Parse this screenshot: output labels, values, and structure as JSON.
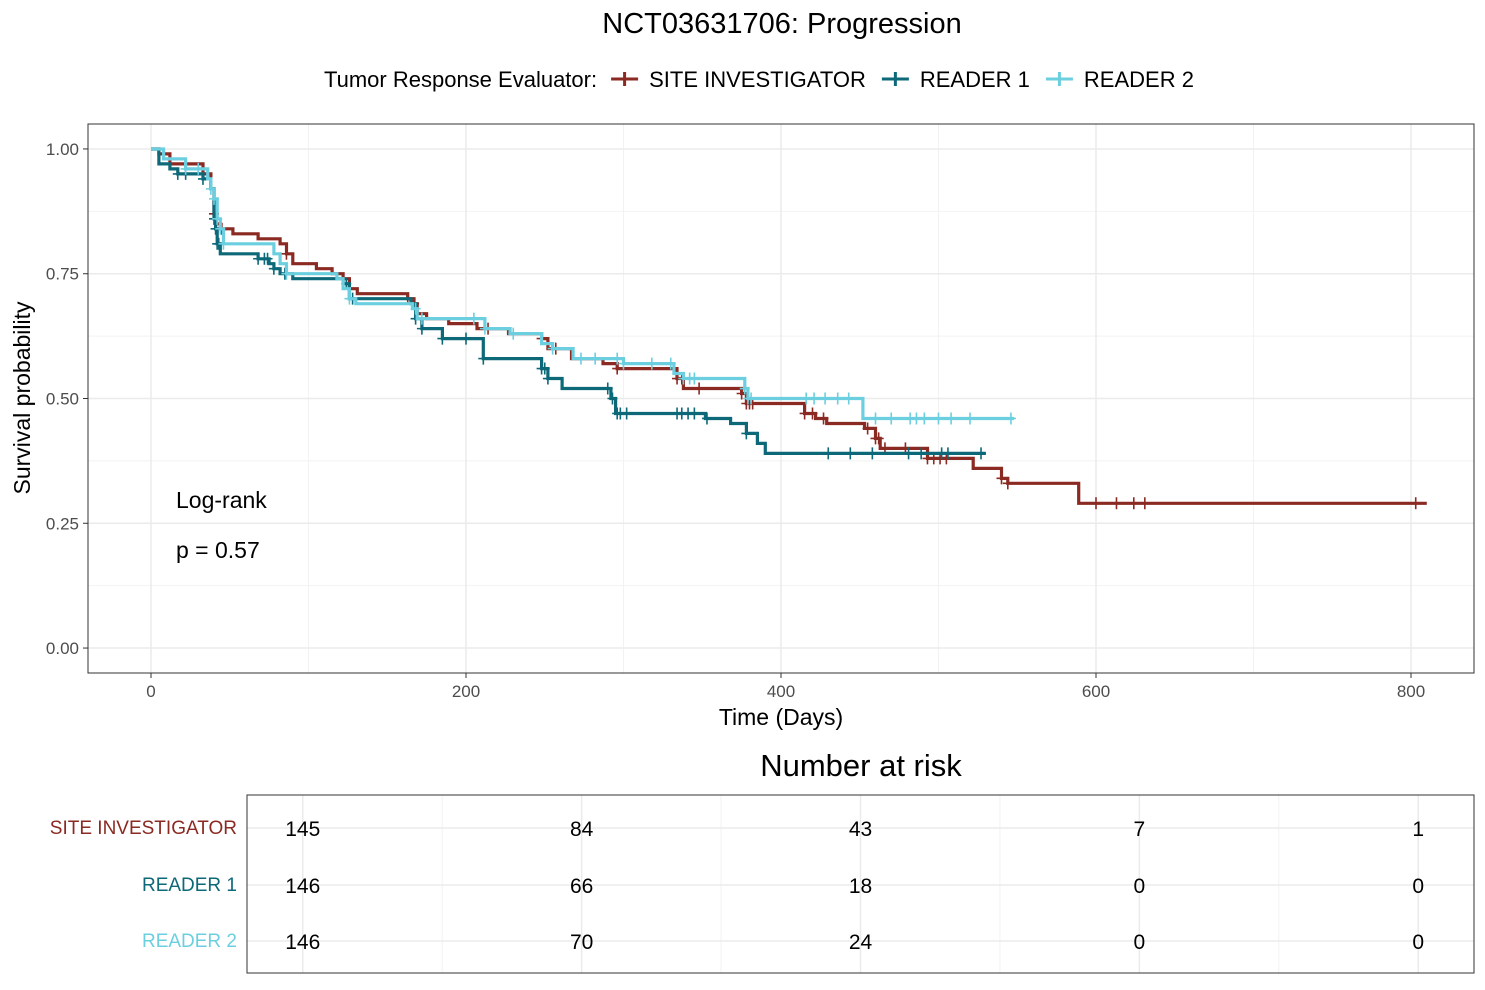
{
  "chart_data": {
    "type": "line",
    "subtype": "kaplan-meier",
    "title": "NCT03631706: Progression",
    "legend": {
      "title": "Tumor Response Evaluator:",
      "position": "top"
    },
    "xlabel": "Time (Days)",
    "ylabel": "Survival probability",
    "xlim": [
      -40,
      840
    ],
    "ylim": [
      -0.05,
      1.05
    ],
    "xticks": [
      0,
      200,
      400,
      600,
      800
    ],
    "xtick_labels": [
      "0",
      "200",
      "400",
      "600",
      "800"
    ],
    "yticks": [
      0,
      0.25,
      0.5,
      0.75,
      1
    ],
    "ytick_labels": [
      "0.00",
      "0.25",
      "0.50",
      "0.75",
      "1.00"
    ],
    "grid": true,
    "annotations": [
      "Log-rank",
      "p = 0.57"
    ],
    "series": [
      {
        "name": "SITE INVESTIGATOR",
        "color": "#8b2a22",
        "steps": [
          [
            0,
            1
          ],
          [
            5,
            0.99
          ],
          [
            12,
            0.97
          ],
          [
            33,
            0.95
          ],
          [
            38,
            0.92
          ],
          [
            40,
            0.87
          ],
          [
            41,
            0.85
          ],
          [
            44,
            0.84
          ],
          [
            52,
            0.83
          ],
          [
            68,
            0.82
          ],
          [
            82,
            0.81
          ],
          [
            86,
            0.79
          ],
          [
            90,
            0.77
          ],
          [
            105,
            0.76
          ],
          [
            108,
            0.76
          ],
          [
            115,
            0.75
          ],
          [
            122,
            0.74
          ],
          [
            126,
            0.72
          ],
          [
            131,
            0.71
          ],
          [
            163,
            0.7
          ],
          [
            167,
            0.69
          ],
          [
            169,
            0.67
          ],
          [
            175,
            0.66
          ],
          [
            189,
            0.65
          ],
          [
            207,
            0.64
          ],
          [
            212,
            0.64
          ],
          [
            227,
            0.63
          ],
          [
            248,
            0.62
          ],
          [
            252,
            0.6
          ],
          [
            267,
            0.58
          ],
          [
            287,
            0.57
          ],
          [
            296,
            0.56
          ],
          [
            334,
            0.54
          ],
          [
            338,
            0.52
          ],
          [
            375,
            0.51
          ],
          [
            378,
            0.49
          ],
          [
            415,
            0.47
          ],
          [
            422,
            0.46
          ],
          [
            429,
            0.45
          ],
          [
            453,
            0.44
          ],
          [
            460,
            0.42
          ],
          [
            463,
            0.4
          ],
          [
            493,
            0.38
          ],
          [
            505,
            0.38
          ],
          [
            522,
            0.36
          ],
          [
            540,
            0.34
          ],
          [
            544,
            0.33
          ],
          [
            589,
            0.29
          ],
          [
            810,
            0.29
          ]
        ],
        "censor_times": [
          40,
          45,
          86,
          126,
          163,
          167,
          214,
          248,
          257,
          296,
          334,
          337,
          348,
          375,
          378,
          380,
          382,
          415,
          420,
          427,
          455,
          460,
          462,
          466,
          479,
          493,
          497,
          501,
          505,
          540,
          544,
          600,
          613,
          624,
          631,
          803
        ]
      },
      {
        "name": "READER 1",
        "color": "#0d6878",
        "steps": [
          [
            0,
            1
          ],
          [
            5,
            0.97
          ],
          [
            12,
            0.96
          ],
          [
            17,
            0.95
          ],
          [
            33,
            0.94
          ],
          [
            38,
            0.92
          ],
          [
            40,
            0.86
          ],
          [
            41,
            0.84
          ],
          [
            42,
            0.81
          ],
          [
            44,
            0.79
          ],
          [
            68,
            0.78
          ],
          [
            75,
            0.77
          ],
          [
            78,
            0.76
          ],
          [
            82,
            0.75
          ],
          [
            85,
            0.75
          ],
          [
            90,
            0.74
          ],
          [
            118,
            0.74
          ],
          [
            122,
            0.73
          ],
          [
            126,
            0.7
          ],
          [
            130,
            0.7
          ],
          [
            133,
            0.7
          ],
          [
            165,
            0.69
          ],
          [
            168,
            0.66
          ],
          [
            172,
            0.64
          ],
          [
            185,
            0.62
          ],
          [
            208,
            0.62
          ],
          [
            211,
            0.58
          ],
          [
            248,
            0.56
          ],
          [
            252,
            0.54
          ],
          [
            261,
            0.52
          ],
          [
            292,
            0.5
          ],
          [
            295,
            0.47
          ],
          [
            352,
            0.46
          ],
          [
            368,
            0.45
          ],
          [
            378,
            0.43
          ],
          [
            385,
            0.41
          ],
          [
            390,
            0.39
          ],
          [
            530,
            0.39
          ]
        ],
        "censor_times": [
          17,
          22,
          33,
          40,
          41,
          42,
          43,
          68,
          72,
          74,
          78,
          85,
          124,
          128,
          168,
          172,
          185,
          200,
          211,
          248,
          250,
          252,
          290,
          293,
          296,
          298,
          302,
          334,
          337,
          341,
          345,
          353,
          378,
          430,
          444,
          458,
          481,
          489,
          502,
          506,
          527
        ]
      },
      {
        "name": "READER 2",
        "color": "#6ccfe0",
        "steps": [
          [
            0,
            1
          ],
          [
            8,
            0.98
          ],
          [
            22,
            0.96
          ],
          [
            36,
            0.94
          ],
          [
            38,
            0.92
          ],
          [
            40,
            0.9
          ],
          [
            42,
            0.86
          ],
          [
            44,
            0.84
          ],
          [
            46,
            0.81
          ],
          [
            78,
            0.79
          ],
          [
            82,
            0.77
          ],
          [
            86,
            0.75
          ],
          [
            108,
            0.75
          ],
          [
            118,
            0.74
          ],
          [
            122,
            0.72
          ],
          [
            126,
            0.7
          ],
          [
            130,
            0.69
          ],
          [
            166,
            0.68
          ],
          [
            169,
            0.66
          ],
          [
            205,
            0.66
          ],
          [
            212,
            0.64
          ],
          [
            228,
            0.63
          ],
          [
            248,
            0.61
          ],
          [
            255,
            0.6
          ],
          [
            268,
            0.58
          ],
          [
            300,
            0.57
          ],
          [
            332,
            0.55
          ],
          [
            338,
            0.54
          ],
          [
            377,
            0.52
          ],
          [
            379,
            0.5
          ],
          [
            452,
            0.46
          ],
          [
            548,
            0.46
          ]
        ],
        "censor_times": [
          22,
          30,
          38,
          40,
          42,
          44,
          46,
          86,
          126,
          168,
          172,
          205,
          212,
          230,
          255,
          273,
          282,
          296,
          300,
          318,
          330,
          338,
          342,
          345,
          377,
          379,
          381,
          416,
          421,
          428,
          436,
          443,
          460,
          470,
          482,
          486,
          491,
          500,
          508,
          520,
          546
        ]
      }
    ],
    "risk_table": {
      "title": "Number at risk",
      "times": [
        0,
        200,
        400,
        600,
        800
      ],
      "rows": [
        {
          "name": "SITE INVESTIGATOR",
          "color": "#8b2a22",
          "values": [
            "145",
            "84",
            "43",
            "7",
            "1"
          ]
        },
        {
          "name": "READER 1",
          "color": "#0d6878",
          "values": [
            "146",
            "66",
            "18",
            "0",
            "0"
          ]
        },
        {
          "name": "READER 2",
          "color": "#6ccfe0",
          "values": [
            "146",
            "70",
            "24",
            "0",
            "0"
          ]
        }
      ]
    }
  }
}
